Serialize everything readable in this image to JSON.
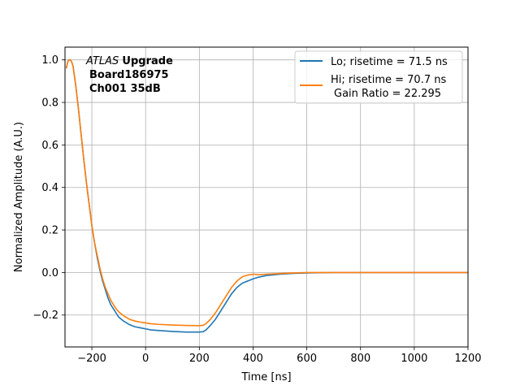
{
  "chart_data": {
    "type": "line",
    "xlabel": "Time [ns]",
    "ylabel": "Normalized Amplitude (A.U.)",
    "xlim": [
      -300,
      1200
    ],
    "ylim": [
      -0.35,
      1.06
    ],
    "xticks": [
      -200,
      0,
      200,
      400,
      600,
      800,
      1000,
      1200
    ],
    "xtick_labels": [
      "−200",
      "0",
      "200",
      "400",
      "600",
      "800",
      "1000",
      "1200"
    ],
    "yticks": [
      -0.2,
      0.0,
      0.2,
      0.4,
      0.6,
      0.8,
      1.0
    ],
    "ytick_labels": [
      "−0.2",
      "0.0",
      "0.2",
      "0.4",
      "0.6",
      "0.8",
      "1.0"
    ],
    "grid": true,
    "legend_position": "top-right",
    "annotation": {
      "italic": "ATLAS",
      "bold1": "Upgrade",
      "line2": "Board186975",
      "line3": "Ch001 35dB"
    },
    "series": [
      {
        "name": "Lo; risetime = 71.5 ns",
        "color": "#1f77b4",
        "x": [
          -295,
          -290,
          -285,
          -280,
          -275,
          -270,
          -260,
          -250,
          -240,
          -230,
          -220,
          -210,
          -200,
          -190,
          -180,
          -170,
          -160,
          -150,
          -140,
          -130,
          -120,
          -110,
          -100,
          -80,
          -60,
          -40,
          -20,
          0,
          20,
          50,
          100,
          150,
          200,
          215,
          225,
          240,
          260,
          280,
          300,
          320,
          340,
          360,
          380,
          400,
          420,
          450,
          500,
          550,
          600,
          700,
          800,
          900,
          1000,
          1100,
          1200
        ],
        "y": [
          0.96,
          0.99,
          1.0,
          1.0,
          0.99,
          0.97,
          0.88,
          0.77,
          0.65,
          0.53,
          0.42,
          0.32,
          0.22,
          0.14,
          0.07,
          0.01,
          -0.04,
          -0.08,
          -0.12,
          -0.15,
          -0.17,
          -0.19,
          -0.21,
          -0.23,
          -0.245,
          -0.255,
          -0.26,
          -0.265,
          -0.27,
          -0.273,
          -0.277,
          -0.28,
          -0.28,
          -0.278,
          -0.27,
          -0.25,
          -0.22,
          -0.18,
          -0.14,
          -0.1,
          -0.07,
          -0.05,
          -0.04,
          -0.03,
          -0.022,
          -0.014,
          -0.008,
          -0.004,
          -0.002,
          0.0,
          0.0,
          0.0,
          0.0,
          0.0,
          0.0
        ]
      },
      {
        "name": "Hi; risetime = 70.7 ns",
        "name2": "Gain Ratio = 22.295",
        "color": "#ff7f0e",
        "x": [
          -295,
          -290,
          -285,
          -280,
          -275,
          -270,
          -260,
          -250,
          -240,
          -230,
          -220,
          -210,
          -200,
          -190,
          -180,
          -170,
          -160,
          -150,
          -140,
          -130,
          -120,
          -110,
          -100,
          -80,
          -60,
          -40,
          -20,
          0,
          20,
          50,
          100,
          150,
          200,
          215,
          225,
          240,
          260,
          280,
          300,
          320,
          340,
          360,
          380,
          400,
          420,
          450,
          500,
          550,
          600,
          700,
          800,
          900,
          1000,
          1100,
          1200
        ],
        "y": [
          0.96,
          0.99,
          1.0,
          1.0,
          0.99,
          0.97,
          0.88,
          0.77,
          0.65,
          0.53,
          0.42,
          0.32,
          0.22,
          0.14,
          0.08,
          0.02,
          -0.03,
          -0.07,
          -0.1,
          -0.13,
          -0.15,
          -0.17,
          -0.185,
          -0.205,
          -0.22,
          -0.228,
          -0.233,
          -0.237,
          -0.241,
          -0.244,
          -0.247,
          -0.249,
          -0.25,
          -0.248,
          -0.24,
          -0.222,
          -0.19,
          -0.15,
          -0.11,
          -0.07,
          -0.04,
          -0.02,
          -0.012,
          -0.008,
          -0.01,
          -0.008,
          -0.005,
          -0.002,
          0.0,
          0.0,
          0.0,
          0.0,
          0.0,
          0.0,
          0.0
        ]
      }
    ]
  }
}
